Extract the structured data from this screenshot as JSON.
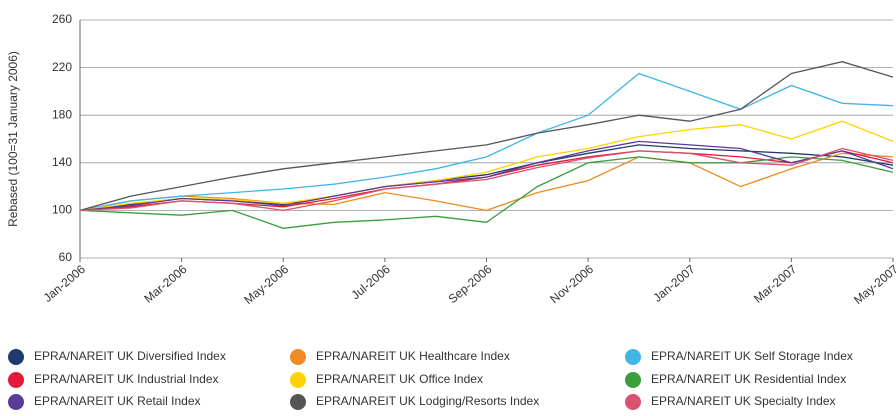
{
  "chart_data": {
    "type": "line",
    "y_label": "Rebased (100=31 January 2006)",
    "x": [
      "2006-01",
      "2006-02",
      "2006-03",
      "2006-04",
      "2006-05",
      "2006-06",
      "2006-07",
      "2006-08",
      "2006-09",
      "2006-10",
      "2006-11",
      "2006-12",
      "2007-01",
      "2007-02",
      "2007-03",
      "2007-04",
      "2007-05"
    ],
    "xticks": [
      {
        "value": "2006-01",
        "label": "Jan-2006"
      },
      {
        "value": "2006-03",
        "label": "Mar-2006"
      },
      {
        "value": "2006-05",
        "label": "May-2006"
      },
      {
        "value": "2006-07",
        "label": "Jul-2006"
      },
      {
        "value": "2006-09",
        "label": "Sep-2006"
      },
      {
        "value": "2006-11",
        "label": "Nov-2006"
      },
      {
        "value": "2007-01",
        "label": "Jan-2007"
      },
      {
        "value": "2007-03",
        "label": "Mar-2007"
      },
      {
        "value": "2007-05",
        "label": "May-2007"
      }
    ],
    "ylim": [
      60,
      260
    ],
    "yticks": [
      60,
      100,
      140,
      180,
      220,
      260
    ],
    "grid": true,
    "series": [
      {
        "name": "EPRA/NAREIT UK Diversified Index",
        "color": "#1f3a6e",
        "values": [
          100,
          105,
          110,
          108,
          105,
          112,
          120,
          125,
          130,
          140,
          148,
          155,
          152,
          150,
          148,
          145,
          138
        ]
      },
      {
        "name": "EPRA/NAREIT UK Healthcare Index",
        "color": "#f08a24",
        "values": [
          100,
          108,
          112,
          110,
          106,
          105,
          115,
          108,
          100,
          115,
          125,
          145,
          140,
          120,
          135,
          148,
          145
        ]
      },
      {
        "name": "EPRA/NAREIT UK Self Storage Index",
        "color": "#3fb6e6",
        "values": [
          100,
          108,
          112,
          115,
          118,
          122,
          128,
          135,
          145,
          165,
          180,
          215,
          200,
          185,
          205,
          190,
          188
        ]
      },
      {
        "name": "EPRA/NAREIT UK Industrial Index",
        "color": "#e4193b",
        "values": [
          100,
          103,
          108,
          106,
          103,
          110,
          118,
          122,
          128,
          138,
          145,
          150,
          148,
          145,
          140,
          150,
          140
        ]
      },
      {
        "name": "EPRA/NAREIT UK Office Index",
        "color": "#ffd200",
        "values": [
          100,
          106,
          110,
          109,
          106,
          112,
          120,
          125,
          132,
          145,
          152,
          162,
          168,
          172,
          160,
          175,
          158
        ]
      },
      {
        "name": "EPRA/NAREIT UK Residential Index",
        "color": "#3a9e3a",
        "values": [
          100,
          98,
          96,
          100,
          85,
          90,
          92,
          95,
          90,
          120,
          140,
          145,
          140,
          140,
          145,
          142,
          132
        ]
      },
      {
        "name": "EPRA/NAREIT UK Retail Index",
        "color": "#5b3a99",
        "values": [
          100,
          104,
          110,
          108,
          104,
          112,
          120,
          124,
          128,
          140,
          150,
          158,
          155,
          152,
          140,
          150,
          135
        ]
      },
      {
        "name": "EPRA/NAREIT UK Lodging/Resorts Index",
        "color": "#555555",
        "values": [
          100,
          112,
          120,
          128,
          135,
          140,
          145,
          150,
          155,
          165,
          172,
          180,
          175,
          185,
          215,
          225,
          212
        ]
      },
      {
        "name": "EPRA/NAREIT UK Specialty Index",
        "color": "#d9536f",
        "values": [
          100,
          102,
          108,
          106,
          100,
          108,
          118,
          122,
          126,
          136,
          144,
          150,
          148,
          140,
          138,
          152,
          142
        ]
      }
    ]
  }
}
